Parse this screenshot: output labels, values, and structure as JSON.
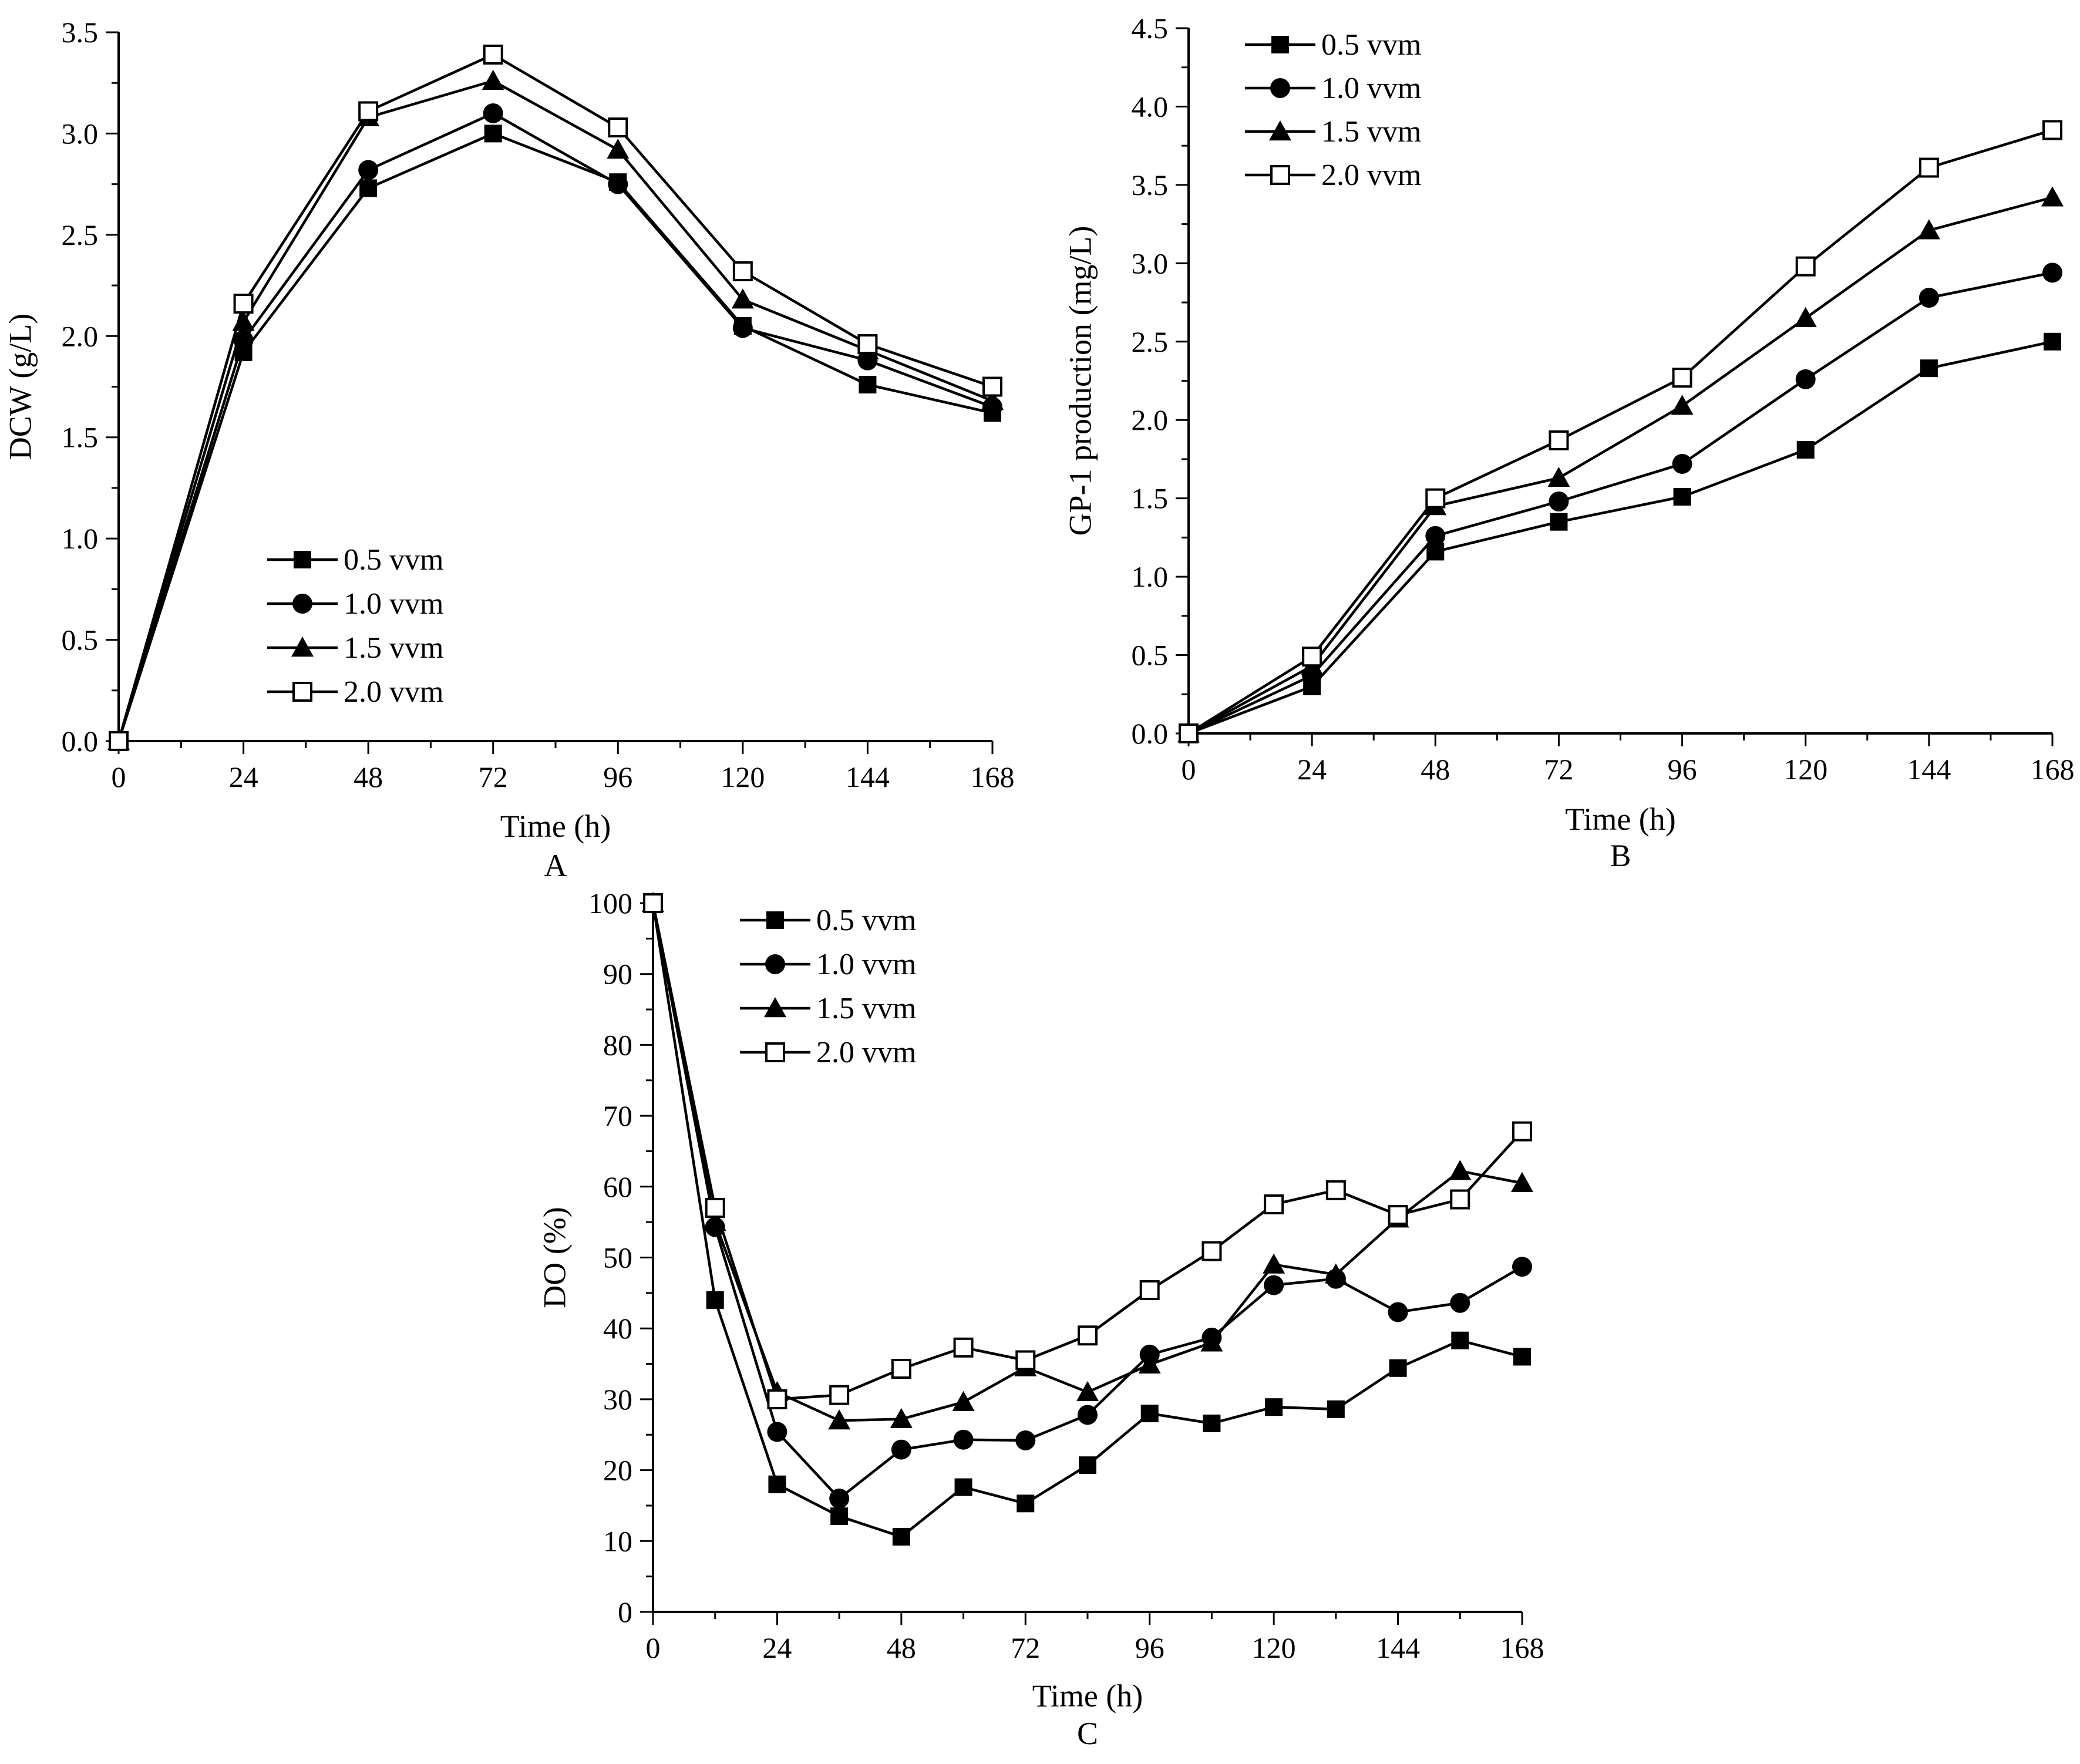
{
  "chart_data": [
    {
      "panel": "A",
      "type": "line",
      "title": "",
      "xlabel": "Time (h)",
      "ylabel": "DCW (g/L)",
      "xlim": [
        0,
        168
      ],
      "ylim": [
        0,
        3.5
      ],
      "xticks": [
        "0",
        "24",
        "48",
        "72",
        "96",
        "120",
        "144",
        "168"
      ],
      "yticks": [
        "0.0",
        "0.5",
        "1.0",
        "1.5",
        "2.0",
        "2.5",
        "3.0",
        "3.5"
      ],
      "legend_position": "bottom-left",
      "x": [
        0,
        24,
        48,
        72,
        96,
        120,
        144,
        168
      ],
      "series": [
        {
          "name": "0.5 vvm",
          "marker": "square-filled",
          "values": [
            0,
            1.92,
            2.73,
            3.0,
            2.76,
            2.05,
            1.76,
            1.62
          ]
        },
        {
          "name": "1.0 vvm",
          "marker": "circle-filled",
          "values": [
            0,
            1.98,
            2.82,
            3.1,
            2.75,
            2.04,
            1.88,
            1.65
          ]
        },
        {
          "name": "1.5 vvm",
          "marker": "triangle-filled",
          "values": [
            0,
            2.07,
            3.08,
            3.26,
            2.92,
            2.18,
            1.93,
            1.68
          ]
        },
        {
          "name": "2.0 vvm",
          "marker": "square-open",
          "values": [
            0,
            2.16,
            3.11,
            3.39,
            3.03,
            2.32,
            1.96,
            1.75
          ]
        }
      ]
    },
    {
      "panel": "B",
      "type": "line",
      "title": "",
      "xlabel": "Time (h)",
      "ylabel": "GP-1 production (mg/L)",
      "xlim": [
        0,
        168
      ],
      "ylim": [
        0,
        4.5
      ],
      "xticks": [
        "0",
        "24",
        "48",
        "72",
        "96",
        "120",
        "144",
        "168"
      ],
      "yticks": [
        "0.0",
        "0.5",
        "1.0",
        "1.5",
        "2.0",
        "2.5",
        "3.0",
        "3.5",
        "4.0",
        "4.5"
      ],
      "legend_position": "top-left",
      "x": [
        0,
        24,
        48,
        72,
        96,
        120,
        144,
        168
      ],
      "series": [
        {
          "name": "0.5 vvm",
          "marker": "square-filled",
          "values": [
            0,
            0.3,
            1.16,
            1.35,
            1.51,
            1.81,
            2.33,
            2.5
          ]
        },
        {
          "name": "1.0 vvm",
          "marker": "circle-filled",
          "values": [
            0,
            0.37,
            1.26,
            1.48,
            1.72,
            2.26,
            2.78,
            2.94
          ]
        },
        {
          "name": "1.5 vvm",
          "marker": "triangle-filled",
          "values": [
            0,
            0.43,
            1.45,
            1.63,
            2.09,
            2.65,
            3.21,
            3.42
          ]
        },
        {
          "name": "2.0 vvm",
          "marker": "square-open",
          "values": [
            0,
            0.49,
            1.5,
            1.87,
            2.27,
            2.98,
            3.61,
            3.85
          ]
        }
      ]
    },
    {
      "panel": "C",
      "type": "line",
      "title": "",
      "xlabel": "Time (h)",
      "ylabel": "DO (%)",
      "xlim": [
        0,
        168
      ],
      "ylim": [
        0,
        100
      ],
      "xticks": [
        "0",
        "24",
        "48",
        "72",
        "96",
        "120",
        "144",
        "168"
      ],
      "yticks": [
        "0",
        "10",
        "20",
        "30",
        "40",
        "50",
        "60",
        "70",
        "80",
        "90",
        "100"
      ],
      "legend_position": "top-left",
      "x": [
        0,
        12,
        24,
        36,
        48,
        60,
        72,
        84,
        96,
        108,
        120,
        132,
        144,
        156,
        168
      ],
      "series": [
        {
          "name": "0.5 vvm",
          "marker": "square-filled",
          "values": [
            100,
            44,
            18,
            13.5,
            10.6,
            17.6,
            15.3,
            20.7,
            28,
            26.6,
            28.9,
            28.6,
            34.4,
            38.3,
            36
          ]
        },
        {
          "name": "1.0 vvm",
          "marker": "circle-filled",
          "values": [
            100,
            54.3,
            25.4,
            16,
            22.9,
            24.3,
            24.2,
            27.8,
            36.3,
            38.7,
            46.1,
            47,
            42.3,
            43.6,
            48.7
          ]
        },
        {
          "name": "1.5 vvm",
          "marker": "triangle-filled",
          "values": [
            100,
            55,
            31,
            27,
            27.2,
            29.6,
            34.5,
            31,
            34.9,
            38,
            49,
            47.6,
            55.5,
            62.2,
            60.5
          ]
        },
        {
          "name": "2.0 vvm",
          "marker": "square-open",
          "values": [
            100,
            57,
            30,
            30.6,
            34.3,
            37.3,
            35.5,
            39,
            45.4,
            50.9,
            57.5,
            59.5,
            56,
            58.2,
            67.8
          ]
        }
      ]
    }
  ]
}
